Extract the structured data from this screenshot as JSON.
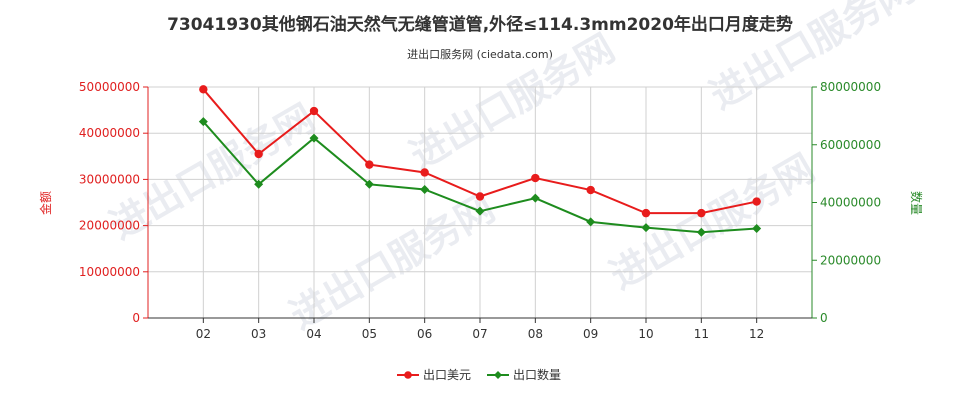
{
  "title": "73041930其他钢石油天然气无缝管道管,外径≤114.3mm2020年出口月度走势",
  "subtitle": "进出口服务网 (ciedata.com)",
  "watermark": "进出口服务网",
  "colors": {
    "series1": "#e81c1c",
    "series2": "#1e8c1e",
    "grid": "#d0d0d0"
  },
  "chart_data": {
    "type": "line",
    "categories": [
      "02",
      "03",
      "04",
      "05",
      "06",
      "07",
      "08",
      "09",
      "10",
      "11",
      "12"
    ],
    "series": [
      {
        "name": "出口美元",
        "axis": "left",
        "values": [
          49500000,
          35500000,
          44800000,
          33200000,
          31500000,
          26300000,
          30300000,
          27700000,
          22700000,
          22700000,
          25200000
        ]
      },
      {
        "name": "出口数量",
        "axis": "right",
        "values": [
          68000000,
          46300000,
          62300000,
          46300000,
          44500000,
          37000000,
          41500000,
          33300000,
          31300000,
          29700000,
          31000000
        ]
      }
    ],
    "ylabel_left": "金额",
    "ylabel_right": "数量",
    "ylim_left": [
      0,
      50000000
    ],
    "ylim_right": [
      0,
      80000000
    ],
    "yticks_left": [
      "0",
      "10000000",
      "20000000",
      "30000000",
      "40000000",
      "50000000"
    ],
    "yticks_right": [
      "0",
      "20000000",
      "40000000",
      "60000000",
      "80000000"
    ],
    "legend_position": "bottom",
    "grid": true
  }
}
